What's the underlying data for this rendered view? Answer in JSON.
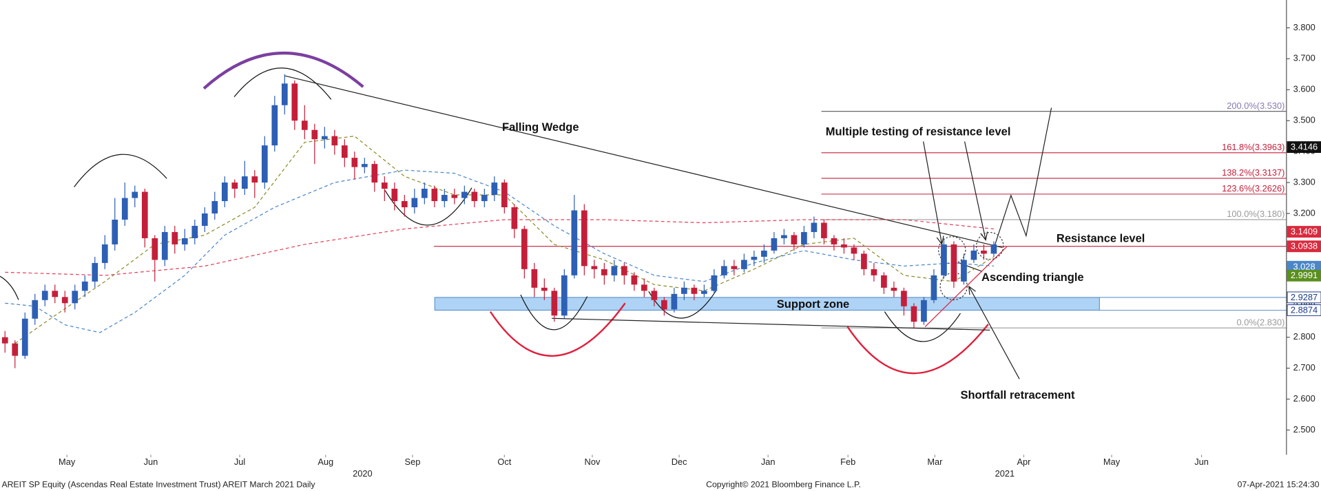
{
  "chart_data": {
    "type": "candlestick",
    "footer_left": "AREIT SP Equity (Ascendas Real Estate Investment Trust) AREIT March 2021  Daily",
    "footer_center": "Copyright© 2021 Bloomberg Finance L.P.",
    "footer_right": "07-Apr-2021 15:24:30",
    "up_color": "#2d5fb4",
    "down_color": "#c41f3a",
    "xlim": [
      -0.5,
      128.3
    ],
    "ylim": [
      2.42,
      3.89
    ],
    "xticks": [
      {
        "value": 6.2,
        "label": "May"
      },
      {
        "value": 14.6,
        "label": "Jun"
      },
      {
        "value": 23.5,
        "label": "Jul"
      },
      {
        "value": 32.1,
        "label": "Aug"
      },
      {
        "value": 40.8,
        "label": "Sep"
      },
      {
        "value": 50.0,
        "label": "Oct"
      },
      {
        "value": 58.8,
        "label": "Nov"
      },
      {
        "value": 67.5,
        "label": "Dec"
      },
      {
        "value": 76.4,
        "label": "Jan"
      },
      {
        "value": 84.4,
        "label": "Feb"
      },
      {
        "value": 93.1,
        "label": "Mar"
      },
      {
        "value": 102.0,
        "label": "Apr"
      },
      {
        "value": 110.8,
        "label": "May"
      },
      {
        "value": 119.8,
        "label": "Jun"
      }
    ],
    "year_labels": [
      {
        "value": 35.8,
        "label": "2020"
      },
      {
        "value": 100.1,
        "label": "2021"
      }
    ],
    "yticks": [
      {
        "value": 2.5,
        "label": "2.500"
      },
      {
        "value": 2.6,
        "label": "2.600"
      },
      {
        "value": 2.7,
        "label": "2.700"
      },
      {
        "value": 2.8,
        "label": "2.800"
      },
      {
        "value": 2.9,
        "label": "2.900"
      },
      {
        "value": 3.0,
        "label": "3.000"
      },
      {
        "value": 3.1,
        "label": "3.100"
      },
      {
        "value": 3.2,
        "label": "3.200"
      },
      {
        "value": 3.3,
        "label": "3.300"
      },
      {
        "value": 3.4,
        "label": "3.400"
      },
      {
        "value": 3.5,
        "label": "3.500"
      },
      {
        "value": 3.6,
        "label": "3.600"
      },
      {
        "value": 3.7,
        "label": "3.700"
      },
      {
        "value": 3.8,
        "label": "3.800"
      }
    ],
    "open": [
      2.8,
      2.78,
      2.74,
      2.86,
      2.92,
      2.95,
      2.93,
      2.91,
      2.95,
      2.98,
      3.04,
      3.1,
      3.18,
      3.25,
      3.27,
      3.12,
      3.05,
      3.14,
      3.1,
      3.12,
      3.16,
      3.2,
      3.24,
      3.3,
      3.28,
      3.32,
      3.3,
      3.42,
      3.55,
      3.62,
      3.5,
      3.47,
      3.44,
      3.45,
      3.42,
      3.38,
      3.35,
      3.36,
      3.3,
      3.28,
      3.24,
      3.22,
      3.25,
      3.28,
      3.24,
      3.26,
      3.25,
      3.27,
      3.24,
      3.26,
      3.3,
      3.22,
      3.15,
      3.02,
      2.96,
      2.95,
      2.87,
      3.0,
      3.21,
      3.03,
      3.02,
      3.0,
      3.03,
      3.0,
      2.97,
      2.95,
      2.92,
      2.89,
      2.94,
      2.96,
      2.94,
      2.95,
      3.0,
      3.03,
      3.02,
      3.05,
      3.06,
      3.08,
      3.12,
      3.13,
      3.1,
      3.14,
      3.17,
      3.12,
      3.1,
      3.09,
      3.07,
      3.02,
      3.0,
      2.96,
      2.95,
      2.9,
      2.85,
      2.92,
      3.0,
      3.1,
      2.98,
      3.05,
      3.08,
      3.07
    ],
    "high": [
      2.82,
      2.79,
      2.88,
      2.94,
      2.97,
      2.97,
      2.95,
      2.97,
      3.0,
      3.06,
      3.13,
      3.25,
      3.3,
      3.29,
      3.28,
      3.13,
      3.16,
      3.16,
      3.15,
      3.18,
      3.22,
      3.27,
      3.32,
      3.31,
      3.37,
      3.34,
      3.45,
      3.58,
      3.65,
      3.63,
      3.55,
      3.49,
      3.48,
      3.47,
      3.44,
      3.4,
      3.38,
      3.37,
      3.32,
      3.3,
      3.26,
      3.28,
      3.3,
      3.29,
      3.28,
      3.28,
      3.29,
      3.28,
      3.28,
      3.32,
      3.31,
      3.23,
      3.16,
      3.04,
      2.99,
      2.96,
      3.02,
      3.26,
      3.23,
      3.05,
      3.04,
      3.05,
      3.04,
      3.01,
      2.99,
      2.96,
      2.93,
      2.96,
      2.98,
      2.97,
      2.97,
      3.02,
      3.05,
      3.05,
      3.07,
      3.08,
      3.1,
      3.14,
      3.15,
      3.14,
      3.16,
      3.19,
      3.18,
      3.13,
      3.12,
      3.1,
      3.08,
      3.04,
      3.01,
      2.98,
      2.96,
      2.91,
      2.93,
      3.02,
      3.12,
      3.11,
      3.07,
      3.1,
      3.1,
      3.11
    ],
    "low": [
      2.75,
      2.7,
      2.73,
      2.84,
      2.9,
      2.91,
      2.88,
      2.89,
      2.93,
      2.96,
      3.02,
      3.08,
      3.16,
      3.22,
      3.09,
      2.98,
      3.03,
      3.07,
      3.08,
      3.1,
      3.14,
      3.18,
      3.22,
      3.25,
      3.26,
      3.25,
      3.28,
      3.4,
      3.52,
      3.47,
      3.44,
      3.36,
      3.41,
      3.39,
      3.35,
      3.31,
      3.33,
      3.27,
      3.24,
      3.21,
      3.19,
      3.2,
      3.23,
      3.22,
      3.22,
      3.23,
      3.23,
      3.22,
      3.22,
      3.24,
      3.2,
      3.12,
      2.99,
      2.93,
      2.92,
      2.85,
      2.86,
      2.99,
      3.0,
      2.99,
      2.97,
      2.98,
      2.97,
      2.95,
      2.93,
      2.9,
      2.87,
      2.88,
      2.92,
      2.92,
      2.93,
      2.94,
      2.99,
      3.0,
      3.01,
      3.03,
      3.04,
      3.07,
      3.1,
      3.08,
      3.09,
      3.12,
      3.1,
      3.08,
      3.07,
      3.05,
      3.0,
      2.98,
      2.94,
      2.93,
      2.87,
      2.83,
      2.84,
      2.91,
      2.99,
      2.96,
      2.97,
      3.04,
      3.05,
      3.06
    ],
    "close": [
      2.78,
      2.74,
      2.86,
      2.92,
      2.95,
      2.93,
      2.91,
      2.95,
      2.98,
      3.04,
      3.1,
      3.18,
      3.25,
      3.27,
      3.12,
      3.05,
      3.14,
      3.1,
      3.12,
      3.16,
      3.2,
      3.24,
      3.3,
      3.28,
      3.32,
      3.3,
      3.42,
      3.55,
      3.62,
      3.5,
      3.47,
      3.44,
      3.45,
      3.42,
      3.38,
      3.35,
      3.36,
      3.3,
      3.28,
      3.24,
      3.22,
      3.25,
      3.28,
      3.24,
      3.26,
      3.25,
      3.27,
      3.24,
      3.26,
      3.3,
      3.22,
      3.15,
      3.02,
      2.96,
      2.95,
      2.87,
      3.0,
      3.21,
      3.03,
      3.02,
      3.0,
      3.03,
      3.0,
      2.97,
      2.95,
      2.92,
      2.89,
      2.94,
      2.96,
      2.94,
      2.95,
      3.0,
      3.03,
      3.02,
      3.05,
      3.06,
      3.08,
      3.12,
      3.13,
      3.1,
      3.14,
      3.17,
      3.12,
      3.1,
      3.09,
      3.07,
      3.02,
      3.0,
      2.96,
      2.95,
      2.9,
      2.85,
      2.92,
      3.0,
      3.1,
      2.98,
      3.05,
      3.08,
      3.07,
      3.1
    ],
    "moving_averages": [
      {
        "color": "#8a8a2a",
        "x": [
          1,
          5,
          10,
          15,
          20,
          25,
          30,
          35,
          40,
          45,
          50,
          55,
          60,
          65,
          70,
          75,
          80,
          85,
          90,
          95,
          99
        ],
        "values": [
          2.78,
          2.87,
          2.98,
          3.1,
          3.13,
          3.22,
          3.43,
          3.45,
          3.32,
          3.26,
          3.26,
          3.1,
          3.05,
          2.97,
          2.95,
          3.02,
          3.1,
          3.12,
          3.0,
          2.98,
          3.06
        ]
      },
      {
        "color": "#4a86c8",
        "x": [
          0,
          3,
          6,
          9.5,
          13,
          18,
          22,
          27,
          33,
          40,
          45,
          50,
          55,
          60,
          65,
          70,
          75,
          80,
          85,
          90,
          95,
          99
        ],
        "values": [
          2.91,
          2.9,
          2.84,
          2.815,
          2.88,
          3.0,
          3.13,
          3.22,
          3.3,
          3.34,
          3.33,
          3.27,
          3.16,
          3.07,
          3.0,
          2.98,
          3.04,
          3.08,
          3.05,
          3.03,
          3.04,
          3.03
        ]
      },
      {
        "color": "#e0405a",
        "x": [
          0,
          10,
          20,
          30,
          40,
          50,
          60,
          70,
          80,
          90,
          96,
          99
        ],
        "values": [
          3.01,
          3.0,
          3.03,
          3.1,
          3.15,
          3.18,
          3.18,
          3.17,
          3.18,
          3.18,
          3.16,
          3.15
        ]
      }
    ],
    "fib_levels": [
      {
        "value": 3.53,
        "label": "200.0%(3.530)",
        "color": "#8a78b0"
      },
      {
        "value": 3.3963,
        "label": "161.8%(3.3963)",
        "color": "#c41f3a"
      },
      {
        "value": 3.3137,
        "label": "138.2%(3.3137)",
        "color": "#c41f3a"
      },
      {
        "value": 3.2626,
        "label": "123.6%(3.2626)",
        "color": "#c41f3a"
      },
      {
        "value": 3.18,
        "label": "100.0%(3.180)",
        "color": "#9a9a9a"
      },
      {
        "value": 2.83,
        "label": "0.0%(2.830)",
        "color": "#9a9a9a"
      }
    ],
    "resistance": {
      "value": 3.0938,
      "color": "#c41f3a"
    },
    "support_zone": {
      "low": 2.8874,
      "high": 2.9287,
      "color": "#aed3f5"
    },
    "price_tags": [
      {
        "value": 3.4146,
        "color": "#111111",
        "text_color": "#ffffff"
      },
      {
        "value": 3.1409,
        "color": "#d92a3e",
        "text_color": "#ffffff"
      },
      {
        "value": 3.0938,
        "color": "#d92a3e",
        "text_color": "#ffffff"
      },
      {
        "value": 3.028,
        "color": "#4a86c8",
        "text_color": "#ffffff"
      },
      {
        "value": 2.9991,
        "color": "#5a8f1e",
        "text_color": "#ffffff"
      },
      {
        "value": 2.9287,
        "color": "#ffffff",
        "text_color": "#1a3a8a"
      },
      {
        "value": 2.8874,
        "color": "#ffffff",
        "text_color": "#1a3a8a"
      }
    ],
    "annotations": [
      {
        "text": "Falling Wedge"
      },
      {
        "text": "Multiple testing of resistance level"
      },
      {
        "text": "Resistance level"
      },
      {
        "text": "Ascending triangle"
      },
      {
        "text": "Support zone"
      },
      {
        "text": "Shortfall retracement"
      }
    ]
  }
}
